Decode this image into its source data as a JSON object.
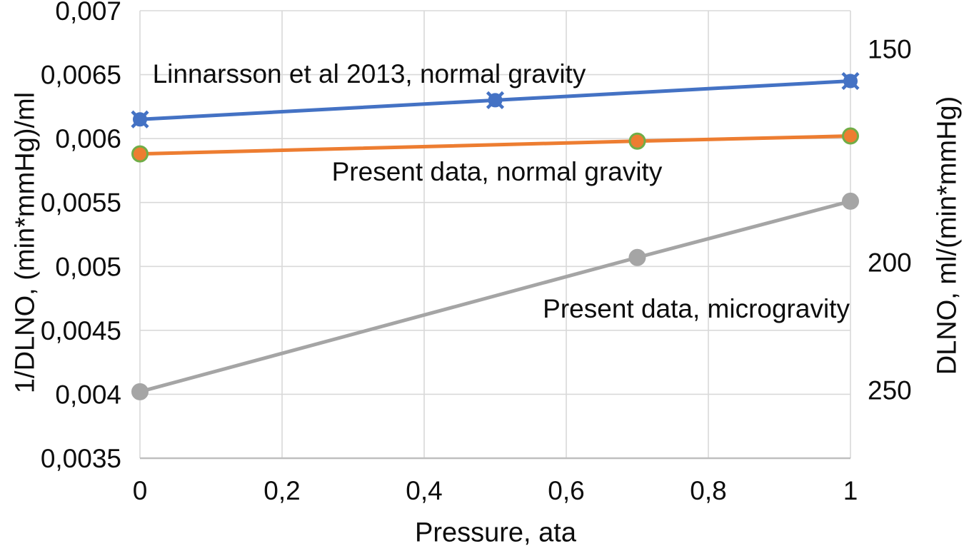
{
  "chart_data": {
    "type": "line",
    "background": "#FFFFFF",
    "grid": true,
    "gridline_color": "#D9D9D9",
    "axis_line_color": "#BFBFBF",
    "text_color": "#0d0d0d",
    "x": {
      "label": "Pressure, ata",
      "range": [
        0,
        1
      ],
      "ticks": [
        {
          "label": "0",
          "at": 0
        },
        {
          "label": "0,2",
          "at": 0.2
        },
        {
          "label": "0,4",
          "at": 0.4
        },
        {
          "label": "0,6",
          "at": 0.6
        },
        {
          "label": "0,8",
          "at": 0.8
        },
        {
          "label": "1",
          "at": 1
        }
      ]
    },
    "y_left": {
      "label": "1/DLNO, (min*mmHg)/ml",
      "range": [
        0.0035,
        0.007
      ],
      "ticks": [
        {
          "label": "0,0035",
          "at": 0.0035
        },
        {
          "label": "0,004",
          "at": 0.004
        },
        {
          "label": "0,0045",
          "at": 0.0045
        },
        {
          "label": "0,005",
          "at": 0.005
        },
        {
          "label": "0,0055",
          "at": 0.0055
        },
        {
          "label": "0,006",
          "at": 0.006
        },
        {
          "label": "0,0065",
          "at": 0.0065
        },
        {
          "label": "0,007",
          "at": 0.007
        }
      ]
    },
    "y_right": {
      "label": "DLNO, ml/(min*mmHg)",
      "scale_note": "reciprocal of left axis",
      "ticks": [
        {
          "label": "150",
          "at": 0.0066667
        },
        {
          "label": "200",
          "at": 0.005
        },
        {
          "label": "250",
          "at": 0.004
        }
      ]
    },
    "series": [
      {
        "name": "Linnarsson et al 2013, normal gravity",
        "color": "#4472C4",
        "marker": "x-circle",
        "marker_border": "#4472C4",
        "x": [
          0,
          0.5,
          1
        ],
        "y": [
          0.00615,
          0.0063,
          0.00645
        ],
        "annotation": {
          "text": "Linnarsson et al 2013, normal gravity",
          "at_x": 0.3226,
          "at_y": 0.006509
        }
      },
      {
        "name": "Present data, normal gravity",
        "color": "#ED7D31",
        "marker": "circle",
        "marker_border": "#70AD47",
        "x": [
          0,
          0.7,
          1
        ],
        "y": [
          0.00588,
          0.00598,
          0.00602
        ],
        "annotation": {
          "text": "Present data, normal gravity",
          "at_x": 0.5025,
          "at_y": 0.005745
        }
      },
      {
        "name": "Present data, microgravity",
        "color": "#A5A5A5",
        "marker": "circle",
        "marker_border": "#A5A5A5",
        "x": [
          0,
          0.7,
          1
        ],
        "y": [
          0.00402,
          0.00507,
          0.00551
        ],
        "annotation": {
          "text": "Present data, microgravity",
          "at_x": 0.783,
          "at_y": 0.004672
        }
      }
    ]
  }
}
